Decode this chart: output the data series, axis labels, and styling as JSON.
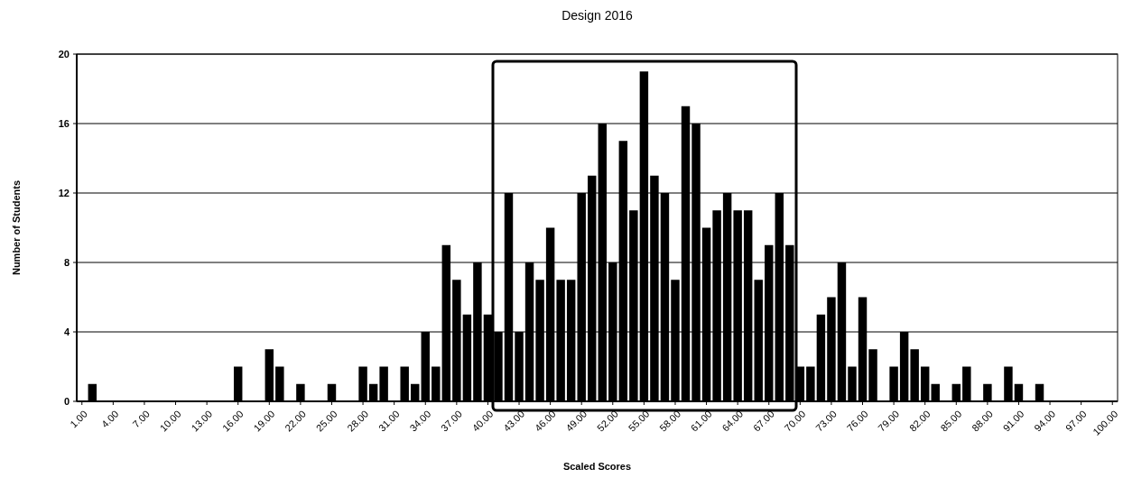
{
  "chart_data": {
    "type": "bar",
    "title": "Design 2016",
    "xlabel": "Scaled Scores",
    "ylabel": "Number of Students",
    "x": [
      1,
      2,
      3,
      4,
      5,
      6,
      7,
      8,
      9,
      10,
      11,
      12,
      13,
      14,
      15,
      16,
      17,
      18,
      19,
      20,
      21,
      22,
      23,
      24,
      25,
      26,
      27,
      28,
      29,
      30,
      31,
      32,
      33,
      34,
      35,
      36,
      37,
      38,
      39,
      40,
      41,
      42,
      43,
      44,
      45,
      46,
      47,
      48,
      49,
      50,
      51,
      52,
      53,
      54,
      55,
      56,
      57,
      58,
      59,
      60,
      61,
      62,
      63,
      64,
      65,
      66,
      67,
      68,
      69,
      70,
      71,
      72,
      73,
      74,
      75,
      76,
      77,
      78,
      79,
      80,
      81,
      82,
      83,
      84,
      85,
      86,
      87,
      88,
      89,
      90,
      91,
      92,
      93,
      94,
      95,
      96,
      97,
      98,
      99,
      100
    ],
    "values": [
      0,
      1,
      0,
      0,
      0,
      0,
      0,
      0,
      0,
      0,
      0,
      0,
      0,
      0,
      0,
      2,
      0,
      0,
      3,
      2,
      0,
      1,
      0,
      0,
      1,
      0,
      0,
      2,
      1,
      2,
      0,
      2,
      1,
      4,
      2,
      9,
      7,
      5,
      8,
      5,
      4,
      12,
      4,
      8,
      7,
      10,
      7,
      7,
      12,
      13,
      16,
      8,
      15,
      11,
      19,
      13,
      12,
      7,
      17,
      16,
      10,
      11,
      12,
      11,
      11,
      7,
      9,
      12,
      9,
      2,
      2,
      5,
      6,
      8,
      2,
      6,
      3,
      0,
      2,
      4,
      3,
      2,
      1,
      0,
      1,
      2,
      0,
      1,
      0,
      2,
      1,
      0,
      1,
      0,
      0,
      0,
      0,
      0,
      0,
      0
    ],
    "color": "#000000",
    "xlim": [
      0.5,
      100.5
    ],
    "xticks": [
      {
        "value": 1,
        "label": "1.00"
      },
      {
        "value": 4,
        "label": "4.00"
      },
      {
        "value": 7,
        "label": "7.00"
      },
      {
        "value": 10,
        "label": "10.00"
      },
      {
        "value": 13,
        "label": "13.00"
      },
      {
        "value": 16,
        "label": "16.00"
      },
      {
        "value": 19,
        "label": "19.00"
      },
      {
        "value": 22,
        "label": "22.00"
      },
      {
        "value": 25,
        "label": "25.00"
      },
      {
        "value": 28,
        "label": "28.00"
      },
      {
        "value": 31,
        "label": "31.00"
      },
      {
        "value": 34,
        "label": "34.00"
      },
      {
        "value": 37,
        "label": "37.00"
      },
      {
        "value": 40,
        "label": "40.00"
      },
      {
        "value": 43,
        "label": "43.00"
      },
      {
        "value": 46,
        "label": "46.00"
      },
      {
        "value": 49,
        "label": "49.00"
      },
      {
        "value": 52,
        "label": "52.00"
      },
      {
        "value": 55,
        "label": "55.00"
      },
      {
        "value": 58,
        "label": "58.00"
      },
      {
        "value": 61,
        "label": "61.00"
      },
      {
        "value": 64,
        "label": "64.00"
      },
      {
        "value": 67,
        "label": "67.00"
      },
      {
        "value": 70,
        "label": "70.00"
      },
      {
        "value": 73,
        "label": "73.00"
      },
      {
        "value": 76,
        "label": "76.00"
      },
      {
        "value": 79,
        "label": "79.00"
      },
      {
        "value": 82,
        "label": "82.00"
      },
      {
        "value": 85,
        "label": "85.00"
      },
      {
        "value": 88,
        "label": "88.00"
      },
      {
        "value": 91,
        "label": "91.00"
      },
      {
        "value": 94,
        "label": "94.00"
      },
      {
        "value": 97,
        "label": "97.00"
      },
      {
        "value": 100,
        "label": "100.00"
      }
    ],
    "ylim": [
      0,
      20
    ],
    "yticks": [
      0,
      4,
      8,
      12,
      16,
      20
    ],
    "grid": "y"
  }
}
